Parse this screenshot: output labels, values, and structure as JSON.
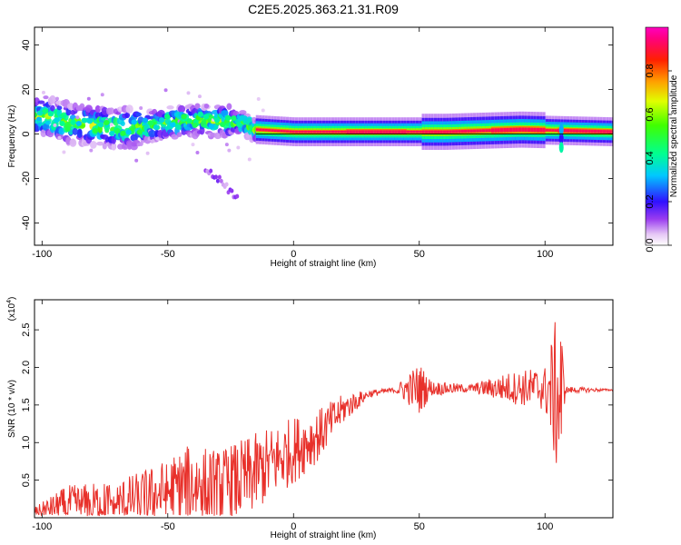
{
  "title": "C2E5.2025.363.21.31.R09",
  "colors": {
    "snr_line": "#e8302a",
    "frame": "#000000",
    "background": "#ffffff"
  },
  "chart_data": [
    {
      "type": "heatmap",
      "name": "spectrogram",
      "xlabel": "Height of straight line (km)",
      "ylabel": "Frequency (Hz)",
      "xlim": [
        -103,
        127
      ],
      "ylim": [
        -50,
        48
      ],
      "xticks": [
        "-100",
        "-50",
        "0",
        "50",
        "100"
      ],
      "yticks": [
        "40",
        "20",
        "0",
        "-20",
        "-40"
      ],
      "colorbar": {
        "label": "Normalized spectral amplitude",
        "range": [
          0,
          1
        ],
        "ticks": [
          "0.0",
          "0.2",
          "0.4",
          "0.6",
          "0.8"
        ]
      },
      "ridge": [
        {
          "x": -100,
          "f": 8
        },
        {
          "x": -90,
          "f": 5
        },
        {
          "x": -80,
          "f": 4
        },
        {
          "x": -70,
          "f": 3
        },
        {
          "x": -60,
          "f": 3
        },
        {
          "x": -50,
          "f": 5
        },
        {
          "x": -40,
          "f": 6
        },
        {
          "x": -30,
          "f": 6
        },
        {
          "x": -20,
          "f": 5
        },
        {
          "x": -15,
          "f": 2
        },
        {
          "x": 0,
          "f": 1
        },
        {
          "x": 30,
          "f": 1
        },
        {
          "x": 60,
          "f": 1
        },
        {
          "x": 90,
          "f": 2
        },
        {
          "x": 127,
          "f": 1
        }
      ],
      "tail": [
        {
          "x": -35,
          "f": -15
        },
        {
          "x": -30,
          "f": -20
        },
        {
          "x": -25,
          "f": -26
        },
        {
          "x": -22,
          "f": -29
        }
      ]
    },
    {
      "type": "line",
      "name": "snr",
      "xlabel": "Height of straight line (km)",
      "ylabel": "SNR (10 * v/v)",
      "scale_label_prefix": "(x10",
      "scale_label_exp": "4",
      "scale_label_suffix": ")",
      "xlim": [
        -103,
        127
      ],
      "ylim": [
        0,
        2.9
      ],
      "xticks": [
        "-100",
        "-50",
        "0",
        "50",
        "100"
      ],
      "yticks": [
        "0.5",
        "1.0",
        "1.5",
        "2.0",
        "2.5"
      ],
      "series": [
        {
          "name": "SNR",
          "color": "#e8302a",
          "envelope": [
            {
              "x": -103,
              "base": 0.08,
              "amp": 0.06
            },
            {
              "x": -90,
              "base": 0.18,
              "amp": 0.25
            },
            {
              "x": -70,
              "base": 0.2,
              "amp": 0.3
            },
            {
              "x": -55,
              "base": 0.3,
              "amp": 0.4
            },
            {
              "x": -40,
              "base": 0.45,
              "amp": 0.55
            },
            {
              "x": -30,
              "base": 0.4,
              "amp": 0.5
            },
            {
              "x": -20,
              "base": 0.5,
              "amp": 0.55
            },
            {
              "x": -10,
              "base": 0.7,
              "amp": 0.5
            },
            {
              "x": 0,
              "base": 0.9,
              "amp": 0.45
            },
            {
              "x": 10,
              "base": 1.1,
              "amp": 0.35
            },
            {
              "x": 20,
              "base": 1.45,
              "amp": 0.2
            },
            {
              "x": 30,
              "base": 1.65,
              "amp": 0.05
            },
            {
              "x": 40,
              "base": 1.7,
              "amp": 0.03
            },
            {
              "x": 50,
              "base": 1.72,
              "amp": 0.35
            },
            {
              "x": 55,
              "base": 1.72,
              "amp": 0.1
            },
            {
              "x": 70,
              "base": 1.72,
              "amp": 0.05
            },
            {
              "x": 85,
              "base": 1.73,
              "amp": 0.2
            },
            {
              "x": 100,
              "base": 1.72,
              "amp": 0.3
            },
            {
              "x": 106,
              "base": 1.6,
              "amp": 1.3
            },
            {
              "x": 108,
              "base": 1.7,
              "amp": 0.05
            },
            {
              "x": 127,
              "base": 1.7,
              "amp": 0.01
            }
          ]
        }
      ]
    }
  ]
}
